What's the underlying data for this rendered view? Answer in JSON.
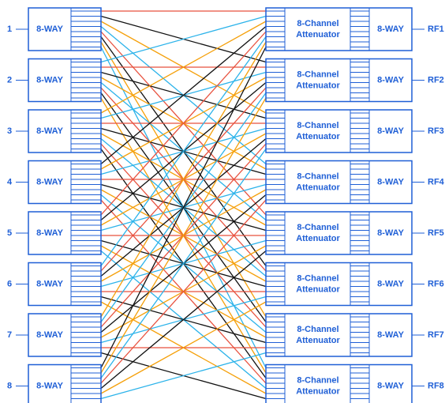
{
  "diagram": {
    "input_ports": [
      "1",
      "2",
      "3",
      "4",
      "5",
      "6",
      "7",
      "8"
    ],
    "splitter_label": "8-WAY",
    "attenuator_label_line1": "8-Channel",
    "attenuator_label_line2": "Attenuator",
    "output_combiner_label": "8-WAY",
    "output_ports": [
      "RF1",
      "RF2",
      "RF3",
      "RF4",
      "RF5",
      "RF6",
      "RF7",
      "RF8"
    ],
    "wire_colors": [
      "#e8523f",
      "#2cb3ea",
      "#f5a00a",
      "#111111"
    ],
    "primary_color": "#1f5fd6"
  }
}
